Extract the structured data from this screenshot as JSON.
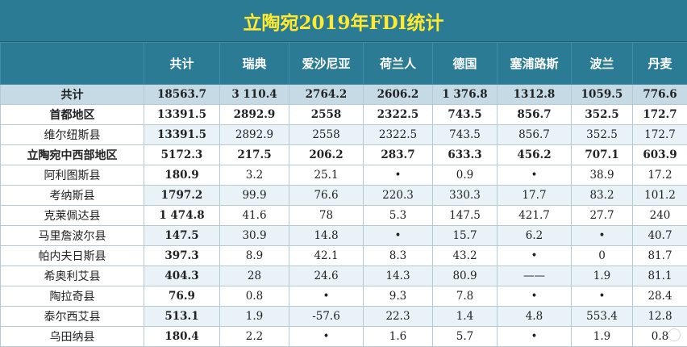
{
  "title": "立陶宛2019年FDI统计",
  "columns": [
    "",
    "共计",
    "瑞典",
    "爱沙尼亚",
    "荷兰人",
    "德国",
    "塞浦路斯",
    "波兰",
    "丹麦"
  ],
  "rows": [
    {
      "name": "共计",
      "values": [
        "18563.7",
        "3 110.4",
        "2764.2",
        "2606.2",
        "1 376.8",
        "1312.8",
        "1059.5",
        "776.6"
      ]
    },
    {
      "name": "首都地区",
      "values": [
        "13391.5",
        "2892.9",
        "2558",
        "2322.5",
        "743.5",
        "856.7",
        "352.5",
        "172.7"
      ]
    },
    {
      "name": "维尔纽斯县",
      "values": [
        "13391.5",
        "2892.9",
        "2558",
        "2322.5",
        "743.5",
        "856.7",
        "352.5",
        "172.7"
      ]
    },
    {
      "name": "立陶宛中西部地区",
      "values": [
        "5172.3",
        "217.5",
        "206.2",
        "283.7",
        "633.3",
        "456.2",
        "707.1",
        "603.9"
      ]
    },
    {
      "name": "阿利图斯县",
      "values": [
        "180.9",
        "3.2",
        "25.1",
        "•",
        "0.9",
        "•",
        "38.9",
        "17.2"
      ]
    },
    {
      "name": "考纳斯县",
      "values": [
        "1797.2",
        "99.9",
        "76.6",
        "220.3",
        "330.3",
        "17.7",
        "83.2",
        "101.2"
      ]
    },
    {
      "name": "克莱佩达县",
      "values": [
        "1 474.8",
        "41.6",
        "78",
        "5.3",
        "147.5",
        "421.7",
        "27.7",
        "240"
      ]
    },
    {
      "name": "马里詹波尔县",
      "values": [
        "147.5",
        "30.9",
        "14.8",
        "•",
        "15.7",
        "6.2",
        "•",
        "40.7"
      ]
    },
    {
      "name": "帕内夫日斯县",
      "values": [
        "397.3",
        "8.9",
        "42.1",
        "8.3",
        "43.2",
        "•",
        "0",
        "81.7"
      ]
    },
    {
      "name": "希奥利艾县",
      "values": [
        "404.3",
        "28",
        "24.6",
        "14.3",
        "80.9",
        "——",
        "1.9",
        "81.1"
      ]
    },
    {
      "name": "陶拉奇县",
      "values": [
        "76.9",
        "0.8",
        "•",
        "9.3",
        "7.8",
        "•",
        "•",
        "28.4"
      ]
    },
    {
      "name": "泰尔西艾县",
      "values": [
        "513.1",
        "1.9",
        "-57.6",
        "22.3",
        "1.4",
        "4.8",
        "553.4",
        "12.8"
      ]
    },
    {
      "name": "乌田纳县",
      "values": [
        "180.4",
        "2.2",
        "•",
        "1.6",
        "5.7",
        "•",
        "1.9",
        "0.8"
      ]
    }
  ]
}
